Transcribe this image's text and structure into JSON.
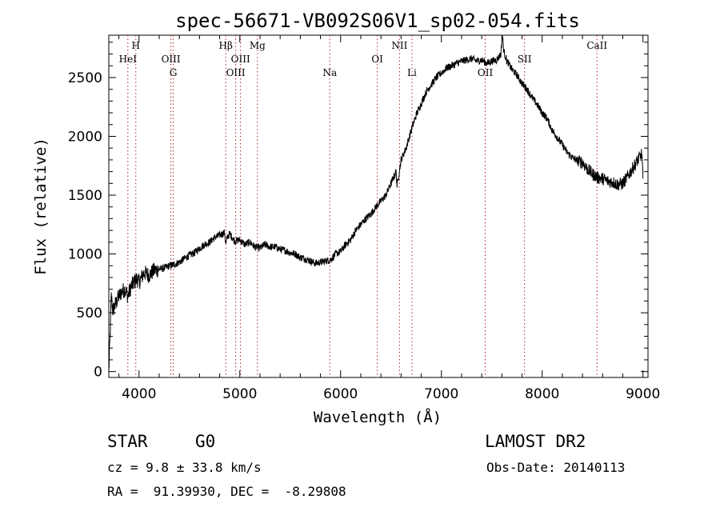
{
  "chart_data": {
    "type": "line",
    "title": "spec-56671-VB092S06V1_sp02-054.fits",
    "xlabel": "Wavelength (Å)",
    "ylabel": "Flux (relative)",
    "xlim": [
      3700,
      9050
    ],
    "ylim": [
      -50,
      2860
    ],
    "xticks": [
      4000,
      5000,
      6000,
      7000,
      8000,
      9000
    ],
    "yticks": [
      0,
      500,
      1000,
      1500,
      2000,
      2500
    ],
    "grid": false,
    "line_color": "#000000",
    "marker_color": "#b22222",
    "lines": [
      {
        "label": "HeI",
        "x": 3889,
        "row": 2
      },
      {
        "label": "H",
        "x": 3968,
        "row": 1
      },
      {
        "label": "OIII",
        "x": 4316,
        "row": 2
      },
      {
        "label": "G",
        "x": 4340,
        "row": 3
      },
      {
        "label": "Hβ",
        "x": 4861,
        "row": 1
      },
      {
        "label": "OIII",
        "x": 4959,
        "row": 3
      },
      {
        "label": "OIII",
        "x": 5007,
        "row": 2
      },
      {
        "label": "Mg",
        "x": 5175,
        "row": 1
      },
      {
        "label": "Na",
        "x": 5893,
        "row": 3
      },
      {
        "label": "OI",
        "x": 6364,
        "row": 2
      },
      {
        "label": "NII",
        "x": 6584,
        "row": 1
      },
      {
        "label": "Li",
        "x": 6708,
        "row": 3
      },
      {
        "label": "OII",
        "x": 7435,
        "row": 3
      },
      {
        "label": "SII",
        "x": 7825,
        "row": 2
      },
      {
        "label": "CaII",
        "x": 8544,
        "row": 1
      }
    ],
    "series": [
      {
        "x": [
          3700,
          3710,
          3725,
          3740,
          3760,
          3780,
          3800,
          3830,
          3860,
          3890,
          3920,
          3950,
          3980,
          4000,
          4050,
          4100,
          4150,
          4200,
          4250,
          4300,
          4350,
          4400,
          4450,
          4500,
          4550,
          4600,
          4650,
          4700,
          4750,
          4800,
          4850,
          4860,
          4880,
          4900,
          4950,
          5000,
          5050,
          5100,
          5150,
          5200,
          5250,
          5300,
          5350,
          5400,
          5450,
          5500,
          5550,
          5600,
          5650,
          5700,
          5750,
          5800,
          5850,
          5900,
          5950,
          6000,
          6050,
          6100,
          6150,
          6200,
          6250,
          6300,
          6350,
          6400,
          6450,
          6500,
          6550,
          6560,
          6600,
          6650,
          6700,
          6750,
          6800,
          6850,
          6900,
          6950,
          7000,
          7050,
          7100,
          7150,
          7200,
          7250,
          7300,
          7350,
          7400,
          7450,
          7500,
          7550,
          7590,
          7605,
          7620,
          7650,
          7700,
          7750,
          7800,
          7850,
          7900,
          7950,
          8000,
          8050,
          8100,
          8150,
          8200,
          8250,
          8300,
          8350,
          8400,
          8450,
          8500,
          8550,
          8600,
          8650,
          8700,
          8750,
          8800,
          8850,
          8900,
          8950,
          8990,
          9000
        ],
        "y": [
          0,
          230,
          640,
          520,
          560,
          600,
          640,
          680,
          700,
          640,
          720,
          760,
          790,
          760,
          840,
          820,
          860,
          870,
          880,
          900,
          910,
          930,
          960,
          990,
          1010,
          1050,
          1080,
          1100,
          1140,
          1160,
          1180,
          1080,
          1150,
          1170,
          1110,
          1120,
          1080,
          1100,
          1060,
          1050,
          1080,
          1060,
          1060,
          1040,
          1030,
          1010,
          1000,
          970,
          960,
          940,
          920,
          930,
          940,
          950,
          1000,
          1020,
          1080,
          1120,
          1200,
          1250,
          1300,
          1340,
          1400,
          1450,
          1500,
          1600,
          1700,
          1580,
          1800,
          1900,
          2050,
          2180,
          2280,
          2380,
          2440,
          2500,
          2540,
          2580,
          2600,
          2620,
          2640,
          2650,
          2660,
          2640,
          2650,
          2620,
          2640,
          2650,
          2700,
          2860,
          2720,
          2640,
          2570,
          2520,
          2450,
          2400,
          2330,
          2270,
          2200,
          2150,
          2050,
          1990,
          1930,
          1860,
          1820,
          1790,
          1780,
          1720,
          1680,
          1650,
          1640,
          1620,
          1610,
          1590,
          1600,
          1660,
          1730,
          1800,
          1850,
          1640
        ]
      }
    ]
  },
  "annotations": {
    "object_class": "STAR",
    "subclass": "G0",
    "survey": "LAMOST DR2",
    "cz": "cz = 9.8 ± 33.8 km/s",
    "obs_date": "Obs-Date: 20140113",
    "coords": "RA =  91.39930, DEC =  -8.29808"
  }
}
